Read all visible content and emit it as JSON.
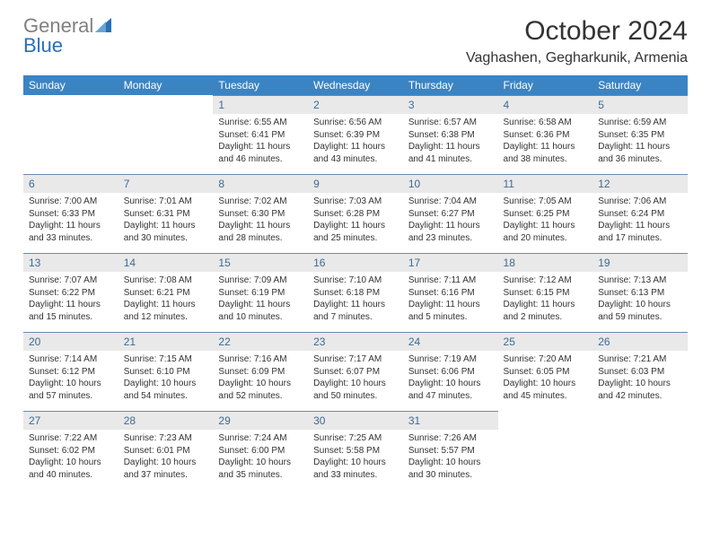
{
  "brand": {
    "part1": "General",
    "part2": "Blue"
  },
  "title": "October 2024",
  "location": "Vaghashen, Gegharkunik, Armenia",
  "colors": {
    "header_bg": "#3b84c4",
    "header_fg": "#ffffff",
    "daynum_bg": "#e9e9e9",
    "daynum_fg": "#3b6a95",
    "rule": "#6a8bad",
    "text": "#333333",
    "brand_gray": "#808080",
    "brand_blue": "#2a6fb5"
  },
  "weekdays": [
    "Sunday",
    "Monday",
    "Tuesday",
    "Wednesday",
    "Thursday",
    "Friday",
    "Saturday"
  ],
  "weeks": [
    [
      null,
      null,
      {
        "n": "1",
        "sr": "Sunrise: 6:55 AM",
        "ss": "Sunset: 6:41 PM",
        "d1": "Daylight: 11 hours",
        "d2": "and 46 minutes."
      },
      {
        "n": "2",
        "sr": "Sunrise: 6:56 AM",
        "ss": "Sunset: 6:39 PM",
        "d1": "Daylight: 11 hours",
        "d2": "and 43 minutes."
      },
      {
        "n": "3",
        "sr": "Sunrise: 6:57 AM",
        "ss": "Sunset: 6:38 PM",
        "d1": "Daylight: 11 hours",
        "d2": "and 41 minutes."
      },
      {
        "n": "4",
        "sr": "Sunrise: 6:58 AM",
        "ss": "Sunset: 6:36 PM",
        "d1": "Daylight: 11 hours",
        "d2": "and 38 minutes."
      },
      {
        "n": "5",
        "sr": "Sunrise: 6:59 AM",
        "ss": "Sunset: 6:35 PM",
        "d1": "Daylight: 11 hours",
        "d2": "and 36 minutes."
      }
    ],
    [
      {
        "n": "6",
        "sr": "Sunrise: 7:00 AM",
        "ss": "Sunset: 6:33 PM",
        "d1": "Daylight: 11 hours",
        "d2": "and 33 minutes."
      },
      {
        "n": "7",
        "sr": "Sunrise: 7:01 AM",
        "ss": "Sunset: 6:31 PM",
        "d1": "Daylight: 11 hours",
        "d2": "and 30 minutes."
      },
      {
        "n": "8",
        "sr": "Sunrise: 7:02 AM",
        "ss": "Sunset: 6:30 PM",
        "d1": "Daylight: 11 hours",
        "d2": "and 28 minutes."
      },
      {
        "n": "9",
        "sr": "Sunrise: 7:03 AM",
        "ss": "Sunset: 6:28 PM",
        "d1": "Daylight: 11 hours",
        "d2": "and 25 minutes."
      },
      {
        "n": "10",
        "sr": "Sunrise: 7:04 AM",
        "ss": "Sunset: 6:27 PM",
        "d1": "Daylight: 11 hours",
        "d2": "and 23 minutes."
      },
      {
        "n": "11",
        "sr": "Sunrise: 7:05 AM",
        "ss": "Sunset: 6:25 PM",
        "d1": "Daylight: 11 hours",
        "d2": "and 20 minutes."
      },
      {
        "n": "12",
        "sr": "Sunrise: 7:06 AM",
        "ss": "Sunset: 6:24 PM",
        "d1": "Daylight: 11 hours",
        "d2": "and 17 minutes."
      }
    ],
    [
      {
        "n": "13",
        "sr": "Sunrise: 7:07 AM",
        "ss": "Sunset: 6:22 PM",
        "d1": "Daylight: 11 hours",
        "d2": "and 15 minutes."
      },
      {
        "n": "14",
        "sr": "Sunrise: 7:08 AM",
        "ss": "Sunset: 6:21 PM",
        "d1": "Daylight: 11 hours",
        "d2": "and 12 minutes."
      },
      {
        "n": "15",
        "sr": "Sunrise: 7:09 AM",
        "ss": "Sunset: 6:19 PM",
        "d1": "Daylight: 11 hours",
        "d2": "and 10 minutes."
      },
      {
        "n": "16",
        "sr": "Sunrise: 7:10 AM",
        "ss": "Sunset: 6:18 PM",
        "d1": "Daylight: 11 hours",
        "d2": "and 7 minutes."
      },
      {
        "n": "17",
        "sr": "Sunrise: 7:11 AM",
        "ss": "Sunset: 6:16 PM",
        "d1": "Daylight: 11 hours",
        "d2": "and 5 minutes."
      },
      {
        "n": "18",
        "sr": "Sunrise: 7:12 AM",
        "ss": "Sunset: 6:15 PM",
        "d1": "Daylight: 11 hours",
        "d2": "and 2 minutes."
      },
      {
        "n": "19",
        "sr": "Sunrise: 7:13 AM",
        "ss": "Sunset: 6:13 PM",
        "d1": "Daylight: 10 hours",
        "d2": "and 59 minutes."
      }
    ],
    [
      {
        "n": "20",
        "sr": "Sunrise: 7:14 AM",
        "ss": "Sunset: 6:12 PM",
        "d1": "Daylight: 10 hours",
        "d2": "and 57 minutes."
      },
      {
        "n": "21",
        "sr": "Sunrise: 7:15 AM",
        "ss": "Sunset: 6:10 PM",
        "d1": "Daylight: 10 hours",
        "d2": "and 54 minutes."
      },
      {
        "n": "22",
        "sr": "Sunrise: 7:16 AM",
        "ss": "Sunset: 6:09 PM",
        "d1": "Daylight: 10 hours",
        "d2": "and 52 minutes."
      },
      {
        "n": "23",
        "sr": "Sunrise: 7:17 AM",
        "ss": "Sunset: 6:07 PM",
        "d1": "Daylight: 10 hours",
        "d2": "and 50 minutes."
      },
      {
        "n": "24",
        "sr": "Sunrise: 7:19 AM",
        "ss": "Sunset: 6:06 PM",
        "d1": "Daylight: 10 hours",
        "d2": "and 47 minutes."
      },
      {
        "n": "25",
        "sr": "Sunrise: 7:20 AM",
        "ss": "Sunset: 6:05 PM",
        "d1": "Daylight: 10 hours",
        "d2": "and 45 minutes."
      },
      {
        "n": "26",
        "sr": "Sunrise: 7:21 AM",
        "ss": "Sunset: 6:03 PM",
        "d1": "Daylight: 10 hours",
        "d2": "and 42 minutes."
      }
    ],
    [
      {
        "n": "27",
        "sr": "Sunrise: 7:22 AM",
        "ss": "Sunset: 6:02 PM",
        "d1": "Daylight: 10 hours",
        "d2": "and 40 minutes."
      },
      {
        "n": "28",
        "sr": "Sunrise: 7:23 AM",
        "ss": "Sunset: 6:01 PM",
        "d1": "Daylight: 10 hours",
        "d2": "and 37 minutes."
      },
      {
        "n": "29",
        "sr": "Sunrise: 7:24 AM",
        "ss": "Sunset: 6:00 PM",
        "d1": "Daylight: 10 hours",
        "d2": "and 35 minutes."
      },
      {
        "n": "30",
        "sr": "Sunrise: 7:25 AM",
        "ss": "Sunset: 5:58 PM",
        "d1": "Daylight: 10 hours",
        "d2": "and 33 minutes."
      },
      {
        "n": "31",
        "sr": "Sunrise: 7:26 AM",
        "ss": "Sunset: 5:57 PM",
        "d1": "Daylight: 10 hours",
        "d2": "and 30 minutes."
      },
      null,
      null
    ]
  ]
}
